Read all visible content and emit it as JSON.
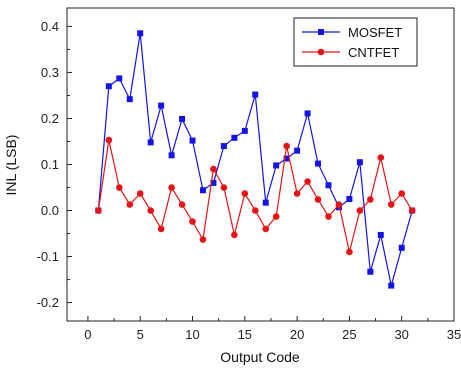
{
  "chart_data": {
    "type": "line",
    "xlabel": "Output Code",
    "ylabel": "INL (LSB)",
    "xlim": [
      -2,
      35
    ],
    "ylim": [
      -0.24,
      0.44
    ],
    "xticks": [
      0,
      5,
      10,
      15,
      20,
      25,
      30,
      35
    ],
    "xtick_labels": [
      "0",
      "5",
      "10",
      "15",
      "20",
      "25",
      "30",
      "35"
    ],
    "yticks": [
      -0.2,
      -0.1,
      0.0,
      0.1,
      0.2,
      0.3,
      0.4
    ],
    "ytick_labels": [
      "-0.2",
      "-0.1",
      "0.0",
      "0.1",
      "0.2",
      "0.3",
      "0.4"
    ],
    "legend_position": "top-right",
    "x": [
      1,
      2,
      3,
      4,
      5,
      6,
      7,
      8,
      9,
      10,
      11,
      12,
      13,
      14,
      15,
      16,
      17,
      18,
      19,
      20,
      21,
      22,
      23,
      24,
      25,
      26,
      27,
      28,
      29,
      30,
      31
    ],
    "series": [
      {
        "name": "MOSFET",
        "color": "#1414e6",
        "marker": "square",
        "values": [
          0.0,
          0.27,
          0.287,
          0.242,
          0.385,
          0.148,
          0.228,
          0.12,
          0.199,
          0.152,
          0.044,
          0.06,
          0.14,
          0.158,
          0.173,
          0.252,
          0.017,
          0.098,
          0.113,
          0.13,
          0.211,
          0.102,
          0.055,
          0.007,
          0.025,
          0.105,
          -0.133,
          -0.053,
          -0.163,
          -0.081,
          0.0
        ]
      },
      {
        "name": "CNTFET",
        "color": "#e61414",
        "marker": "circle",
        "values": [
          0.0,
          0.153,
          0.05,
          0.013,
          0.037,
          0.0,
          -0.04,
          0.05,
          0.013,
          -0.024,
          -0.063,
          0.09,
          0.05,
          -0.053,
          0.037,
          0.0,
          -0.04,
          -0.013,
          0.14,
          0.037,
          0.063,
          0.024,
          -0.013,
          0.013,
          -0.09,
          0.0,
          0.024,
          0.115,
          0.013,
          0.037,
          0.0
        ]
      }
    ]
  }
}
